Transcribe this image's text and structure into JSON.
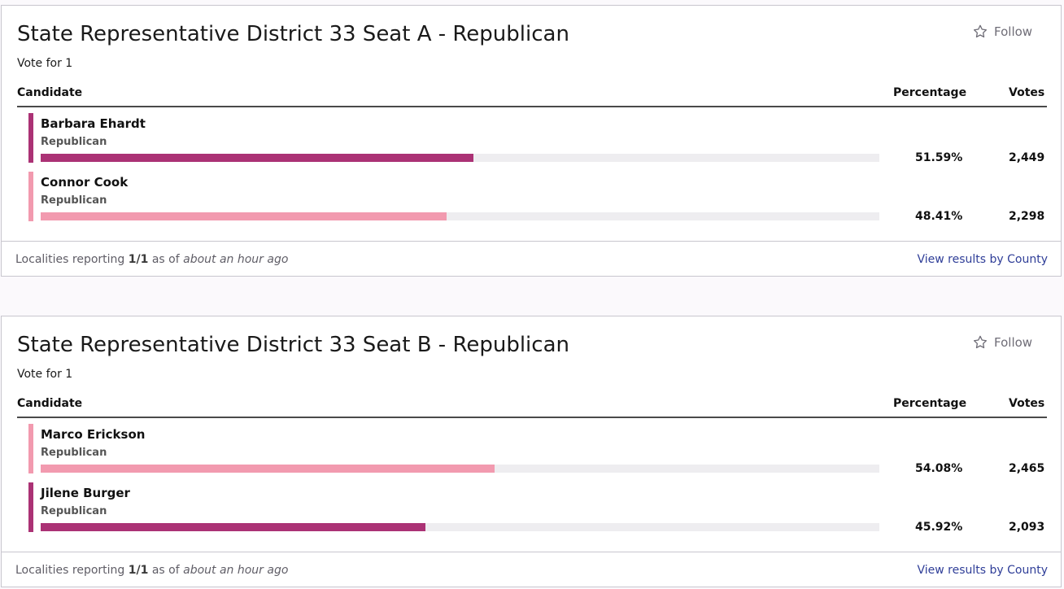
{
  "colors": {
    "dark_magenta": "#ab3275",
    "light_pink": "#f29aaf",
    "track": "#eeedf0",
    "link": "#2f3e98"
  },
  "common": {
    "follow_label": "Follow",
    "follow_icon": "star-outline-icon",
    "header_candidate": "Candidate",
    "header_percentage": "Percentage",
    "header_votes": "Votes",
    "reporting_prefix": "Localities reporting",
    "reporting_as_of": "as of",
    "view_results_label": "View results by County"
  },
  "races": [
    {
      "title": "State Representative District 33 Seat A - Republican",
      "vote_for": "Vote for 1",
      "reporting_count": "1/1",
      "reporting_time": "about an hour ago",
      "candidates": [
        {
          "name": "Barbara Ehardt",
          "party": "Republican",
          "percentage": "51.59%",
          "pct_value": 51.59,
          "votes": "2,449",
          "color": "#ab3275"
        },
        {
          "name": "Connor Cook",
          "party": "Republican",
          "percentage": "48.41%",
          "pct_value": 48.41,
          "votes": "2,298",
          "color": "#f29aaf"
        }
      ]
    },
    {
      "title": "State Representative District 33 Seat B - Republican",
      "vote_for": "Vote for 1",
      "reporting_count": "1/1",
      "reporting_time": "about an hour ago",
      "candidates": [
        {
          "name": "Marco Erickson",
          "party": "Republican",
          "percentage": "54.08%",
          "pct_value": 54.08,
          "votes": "2,465",
          "color": "#f29aaf"
        },
        {
          "name": "Jilene Burger",
          "party": "Republican",
          "percentage": "45.92%",
          "pct_value": 45.92,
          "votes": "2,093",
          "color": "#ab3275"
        }
      ]
    }
  ]
}
